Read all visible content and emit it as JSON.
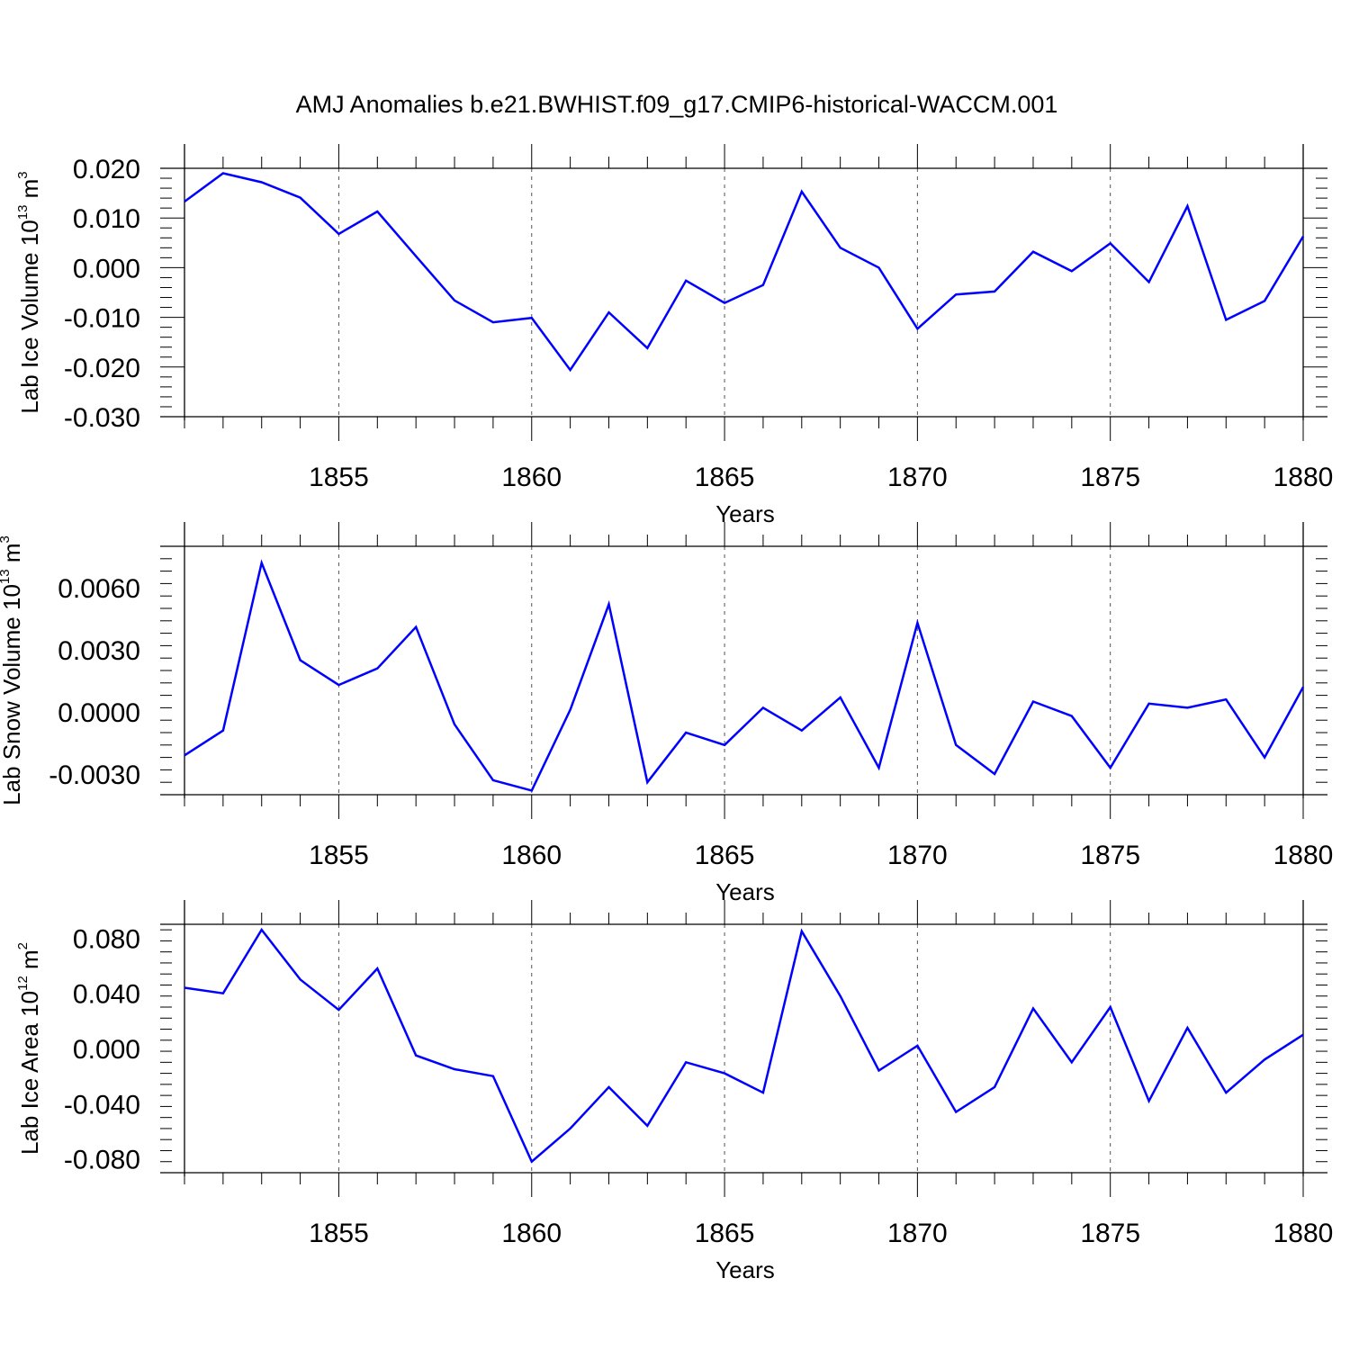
{
  "title": "AMJ Anomalies b.e21.BWHIST.f09_g17.CMIP6-historical-WACCM.001",
  "chart_data": [
    {
      "type": "line",
      "ylabel_main": "Lab Ice Volume 10",
      "ylabel_exp": "13",
      "ylabel_unit": "m",
      "ylabel_unit_exp": "3",
      "xlabel": "Years",
      "xlim": [
        1851,
        1880
      ],
      "ylim": [
        -0.03,
        0.02
      ],
      "yticks": [
        "0.020",
        "0.010",
        "0.000",
        "-0.010",
        "-0.020",
        "-0.030"
      ],
      "xticks": [
        "1855",
        "1860",
        "1865",
        "1870",
        "1875",
        "1880"
      ],
      "grid": "vertical dashed at major x ticks",
      "color": "#0000ff",
      "x": [
        1851,
        1852,
        1853,
        1854,
        1855,
        1856,
        1857,
        1858,
        1859,
        1860,
        1861,
        1862,
        1863,
        1864,
        1865,
        1866,
        1867,
        1868,
        1869,
        1870,
        1871,
        1872,
        1873,
        1874,
        1875,
        1876,
        1877,
        1878,
        1879,
        1880
      ],
      "values": [
        0.0133,
        0.019,
        0.0172,
        0.0141,
        0.0068,
        0.0113,
        0.0023,
        -0.0066,
        -0.011,
        -0.0101,
        -0.0206,
        -0.009,
        -0.0162,
        -0.0026,
        -0.0071,
        -0.0035,
        0.0153,
        0.004,
        0.0,
        -0.0123,
        -0.0054,
        -0.0048,
        0.0032,
        -0.0007,
        0.0049,
        -0.0029,
        0.0124,
        -0.0105,
        -0.0067,
        0.0063
      ]
    },
    {
      "type": "line",
      "ylabel_main": "Lab Snow Volume 10",
      "ylabel_exp": "13",
      "ylabel_unit": "m",
      "ylabel_unit_exp": "3",
      "xlabel": "Years",
      "xlim": [
        1851,
        1880
      ],
      "ylim": [
        -0.004,
        0.008
      ],
      "yticks": [
        "0.0060",
        "0.0030",
        "0.0000",
        "-0.0030"
      ],
      "xticks": [
        "1855",
        "1860",
        "1865",
        "1870",
        "1875",
        "1880"
      ],
      "grid": "vertical dashed at major x ticks",
      "color": "#0000ff",
      "x": [
        1851,
        1852,
        1853,
        1854,
        1855,
        1856,
        1857,
        1858,
        1859,
        1860,
        1861,
        1862,
        1863,
        1864,
        1865,
        1866,
        1867,
        1868,
        1869,
        1870,
        1871,
        1872,
        1873,
        1874,
        1875,
        1876,
        1877,
        1878,
        1879,
        1880
      ],
      "values": [
        -0.0021,
        -0.0009,
        0.0072,
        0.0025,
        0.0013,
        0.0021,
        0.0041,
        -0.0006,
        -0.0033,
        -0.0038,
        0.0001,
        0.0052,
        -0.0034,
        -0.001,
        -0.0016,
        0.0002,
        -0.0009,
        0.0007,
        -0.0027,
        0.0043,
        -0.0016,
        -0.003,
        0.0005,
        -0.0002,
        -0.0027,
        0.0004,
        0.0002,
        0.0006,
        -0.0022,
        0.0012
      ]
    },
    {
      "type": "line",
      "ylabel_main": "Lab Ice Area 10",
      "ylabel_exp": "12",
      "ylabel_unit": "m",
      "ylabel_unit_exp": "2",
      "xlabel": "Years",
      "xlim": [
        1851,
        1880
      ],
      "ylim": [
        -0.09,
        0.09
      ],
      "yticks": [
        "0.080",
        "0.040",
        "0.000",
        "-0.040",
        "-0.080"
      ],
      "xticks": [
        "1855",
        "1860",
        "1865",
        "1870",
        "1875",
        "1880"
      ],
      "grid": "vertical dashed at major x ticks",
      "color": "#0000ff",
      "x": [
        1851,
        1852,
        1853,
        1854,
        1855,
        1856,
        1857,
        1858,
        1859,
        1860,
        1861,
        1862,
        1863,
        1864,
        1865,
        1866,
        1867,
        1868,
        1869,
        1870,
        1871,
        1872,
        1873,
        1874,
        1875,
        1876,
        1877,
        1878,
        1879,
        1880
      ],
      "values": [
        0.044,
        0.04,
        0.086,
        0.05,
        0.028,
        0.058,
        -0.005,
        -0.015,
        -0.02,
        -0.082,
        -0.058,
        -0.028,
        -0.056,
        -0.01,
        -0.018,
        -0.032,
        0.085,
        0.038,
        -0.016,
        0.002,
        -0.046,
        -0.028,
        0.029,
        -0.01,
        0.03,
        -0.038,
        0.015,
        -0.032,
        -0.008,
        0.01
      ]
    }
  ]
}
